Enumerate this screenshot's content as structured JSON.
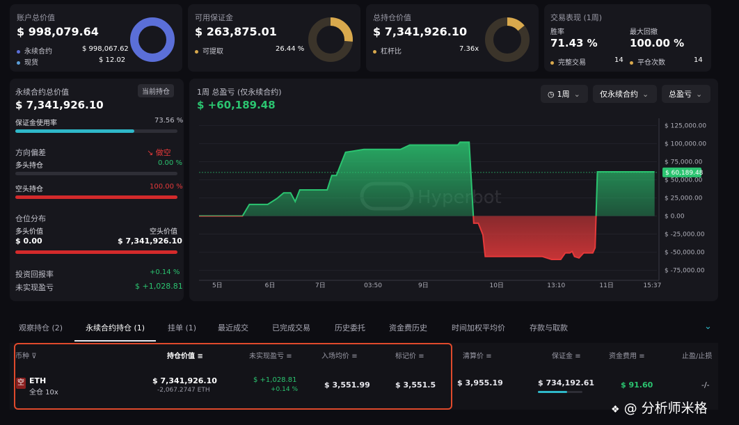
{
  "top": {
    "account": {
      "label": "账户总价值",
      "value": "$ 998,079.64",
      "rows": [
        {
          "name": "永续合约",
          "value": "$ 998,067.62"
        },
        {
          "name": "现货",
          "value": "$ 12.02"
        }
      ],
      "donut_fraction": 1.0
    },
    "margin": {
      "label": "可用保证金",
      "value": "$ 263,875.01",
      "rows": [
        {
          "name": "可提取",
          "value": "26.44 %"
        }
      ],
      "donut_fraction": 0.2644
    },
    "position": {
      "label": "总持仓价值",
      "value": "$ 7,341,926.10",
      "rows": [
        {
          "name": "杠杆比",
          "value": "7.36x"
        }
      ],
      "donut_fraction": 0.14
    },
    "performance": {
      "label": "交易表现 (1周)",
      "win_label": "胜率",
      "win_value": "71.43 %",
      "dd_label": "最大回撤",
      "dd_value": "100.00 %",
      "trades_label": "完整交易",
      "trades_value": "14",
      "close_label": "平仓次数",
      "close_value": "14"
    }
  },
  "left": {
    "perp_label": "永续合约总价值",
    "current_btn": "当前持仓",
    "perp_value": "$ 7,341,926.10",
    "margin_usage_label": "保证金使用率",
    "margin_usage_value": "73.56 %",
    "margin_usage_fraction": 0.7356,
    "bias_label": "方向偏差",
    "bias_value": "做空",
    "long_label": "多头持仓",
    "long_value": "0.00 %",
    "long_fraction": 0.0,
    "short_label": "空头持仓",
    "short_value": "100.00 %",
    "short_fraction": 1.0,
    "dist_label": "仓位分布",
    "long_val_label": "多头价值",
    "short_val_label": "空头价值",
    "long_val": "$ 0.00",
    "short_val": "$ 7,341,926.10",
    "roi_label": "投资回报率",
    "roi_value": "+0.14 %",
    "upnl_label": "未实现盈亏",
    "upnl_value": "$ +1,028.81"
  },
  "chart_panel": {
    "title": "1周 总盈亏 (仅永续合约)",
    "value": "$ +60,189.48",
    "btn_period": "1周",
    "btn_scope": "仅永续合约",
    "btn_metric": "总盈亏",
    "watermark": "Hyperbot",
    "current_label": "$ 60,189.48"
  },
  "chart_data": {
    "type": "area",
    "title": "1周 总盈亏 (仅永续合约)",
    "ylim": [
      -85000,
      135000
    ],
    "yticks": [
      125000,
      100000,
      75000,
      50000,
      25000,
      0,
      -25000,
      -50000,
      -75000
    ],
    "ytick_labels": [
      "$ 125,000.00",
      "$ 100,000.00",
      "$ 75,000.00",
      "$ 50,000.00",
      "$ 25,000.00",
      "$ 0.00",
      "$ -25,000.00",
      "$ -50,000.00",
      "$ -75,000.00"
    ],
    "xlim": [
      0,
      100
    ],
    "xticks": [
      4,
      15.5,
      26.5,
      38,
      49,
      65,
      78,
      89,
      99
    ],
    "xtick_labels": [
      "5日",
      "6日",
      "7日",
      "03:50",
      "9日",
      "10日",
      "13:10",
      "11日",
      "15:37"
    ],
    "x": [
      0,
      9.5,
      11,
      15,
      17,
      18.5,
      19,
      19.5,
      20,
      21,
      22,
      28,
      29,
      30,
      32,
      36,
      40,
      42,
      44,
      46,
      48,
      50,
      53,
      56.5,
      57,
      58,
      59,
      60,
      61,
      62,
      62.5,
      70,
      75,
      76,
      77,
      78,
      79,
      80,
      81,
      81.5,
      82,
      83,
      84,
      85,
      86,
      86.5,
      87,
      99.5
    ],
    "y": [
      0,
      0,
      16000,
      16000,
      24000,
      32000,
      32000,
      32000,
      32000,
      20000,
      36000,
      36000,
      56000,
      56000,
      88000,
      92000,
      92000,
      92000,
      92000,
      98000,
      98000,
      98000,
      98000,
      98000,
      102000,
      102000,
      102000,
      -10000,
      -10000,
      -26000,
      -56000,
      -56000,
      -56000,
      -58000,
      -60000,
      -60000,
      -60000,
      -51000,
      -51000,
      -49000,
      -56000,
      -58000,
      -51000,
      -51000,
      -51000,
      -44000,
      61000,
      61000
    ],
    "current_value": 60189.48
  },
  "tabs": [
    "观察持仓 (2)",
    "永续合约持仓 (1)",
    "挂单 (1)",
    "最近成交",
    "已完成交易",
    "历史委托",
    "资金费历史",
    "时间加权平均价",
    "存款与取款"
  ],
  "table": {
    "headers": [
      "币种",
      "持仓价值",
      "未实现盈亏",
      "入场均价",
      "标记价",
      "清算价",
      "保证金",
      "资金费用",
      "止盈/止损"
    ],
    "row": {
      "side_badge": "空",
      "coin": "ETH",
      "mode": "全仓 10x",
      "value": "$ 7,341,926.10",
      "size": "-2,067.2747 ETH",
      "upnl": "$ +1,028.81",
      "upnl_pct": "+0.14 %",
      "entry": "$ 3,551.99",
      "mark": "$ 3,551.5",
      "liq": "$ 3,955.19",
      "margin": "$ 734,192.61",
      "margin_fraction": 0.65,
      "funding": "$ 91.60",
      "tpsl": "-/-"
    }
  },
  "footer_watermark": "@ 分析师米格",
  "colors": {
    "accent_blue": "#5b6fd8",
    "gold": "#d9a94d",
    "green": "#2bc470",
    "red": "#e5393a",
    "teal": "#2fb8c9"
  }
}
